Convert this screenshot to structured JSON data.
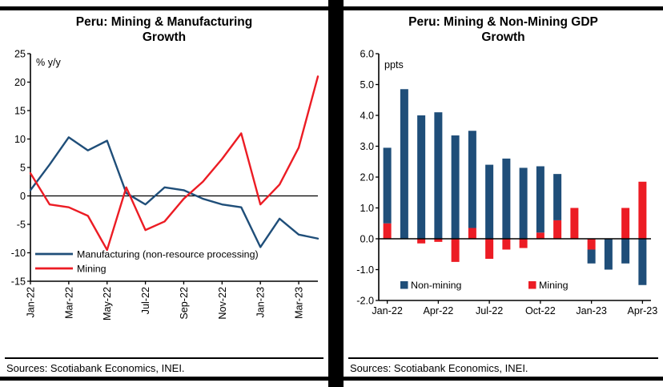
{
  "panels": {
    "left": {
      "title": "Peru: Mining & Manufacturing Growth",
      "sources": "Sources: Scotiabank Economics, INEI."
    },
    "right": {
      "title": "Peru: Mining & Non-Mining GDP Growth",
      "sources": "Sources: Scotiabank Economics, INEI."
    }
  },
  "colors": {
    "blue": "#1f4e79",
    "red": "#ec1c24",
    "axis": "#000000"
  },
  "chart_data": [
    {
      "type": "line",
      "title": "Peru: Mining & Manufacturing Growth",
      "ylabel": "% y/y",
      "ylim": [
        -15,
        25
      ],
      "y_ticks": [
        25,
        20,
        15,
        10,
        5,
        0,
        -5,
        -10,
        -15
      ],
      "grid": false,
      "legend_position": "bottom-left-inside",
      "x": [
        "Jan-22",
        "Feb-22",
        "Mar-22",
        "Apr-22",
        "May-22",
        "Jun-22",
        "Jul-22",
        "Aug-22",
        "Sep-22",
        "Oct-22",
        "Nov-22",
        "Dec-22",
        "Jan-23",
        "Feb-23",
        "Mar-23",
        "Apr-23"
      ],
      "x_tick_labels": [
        "Jan-22",
        "Mar-22",
        "May-22",
        "Jul-22",
        "Sep-22",
        "Nov-22",
        "Jan-23",
        "Mar-23"
      ],
      "x_tick_indices": [
        0,
        2,
        4,
        6,
        8,
        10,
        12,
        14
      ],
      "series": [
        {
          "name": "Manufacturing (non-resource processing)",
          "color_key": "blue",
          "values": [
            1.0,
            5.5,
            10.3,
            8.0,
            9.7,
            0.5,
            -1.5,
            1.5,
            1.0,
            -0.5,
            -1.5,
            -2.0,
            -9.0,
            -4.0,
            -6.8,
            -7.5
          ]
        },
        {
          "name": "Mining",
          "color_key": "red",
          "values": [
            4.0,
            -1.5,
            -2.0,
            -3.5,
            -9.5,
            1.5,
            -6.0,
            -4.5,
            -0.5,
            2.5,
            6.5,
            11.0,
            -1.5,
            2.0,
            8.5,
            21.0
          ]
        }
      ]
    },
    {
      "type": "bar",
      "stacked": true,
      "title": "Peru: Mining & Non-Mining GDP Growth",
      "ylabel": "ppts",
      "ylim": [
        -2,
        6
      ],
      "y_ticks": [
        6.0,
        5.0,
        4.0,
        3.0,
        2.0,
        1.0,
        0.0,
        -1.0,
        -2.0
      ],
      "grid": false,
      "legend_position": "bottom-inside",
      "x": [
        "Jan-22",
        "Feb-22",
        "Mar-22",
        "Apr-22",
        "May-22",
        "Jun-22",
        "Jul-22",
        "Aug-22",
        "Sep-22",
        "Oct-22",
        "Nov-22",
        "Dec-22",
        "Jan-23",
        "Feb-23",
        "Mar-23",
        "Apr-23"
      ],
      "x_tick_labels": [
        "Jan-22",
        "Apr-22",
        "Jul-22",
        "Oct-22",
        "Jan-23",
        "Apr-23"
      ],
      "x_tick_indices": [
        0,
        3,
        6,
        9,
        12,
        15
      ],
      "series": [
        {
          "name": "Mining",
          "color_key": "red",
          "values": [
            0.5,
            0.0,
            -0.15,
            -0.1,
            -0.75,
            0.35,
            -0.65,
            -0.35,
            -0.3,
            0.2,
            0.6,
            1.0,
            -0.35,
            0.0,
            1.0,
            1.85
          ]
        },
        {
          "name": "Non-mining",
          "color_key": "blue",
          "values": [
            2.45,
            4.85,
            4.0,
            4.1,
            3.35,
            3.15,
            2.4,
            2.6,
            2.3,
            2.15,
            1.5,
            0.0,
            -0.45,
            -1.0,
            -0.8,
            -1.5
          ]
        }
      ],
      "legend": [
        {
          "label": "Non-mining",
          "color_key": "blue"
        },
        {
          "label": "Mining",
          "color_key": "red"
        }
      ]
    }
  ]
}
